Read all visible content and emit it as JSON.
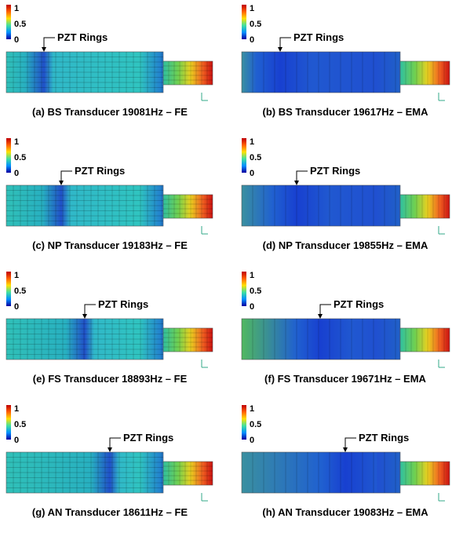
{
  "panels": [
    {
      "caption": "(a) BS Transducer 19081Hz – FE",
      "annotation": "PZT Rings",
      "colorbar_ticks": [
        "1",
        "0.5",
        "0"
      ]
    },
    {
      "caption": "(b) BS Transducer 19617Hz – EMA",
      "annotation": "PZT Rings",
      "colorbar_ticks": [
        "1",
        "0.5",
        "0"
      ]
    },
    {
      "caption": "(c) NP Transducer 19183Hz – FE",
      "annotation": "PZT Rings",
      "colorbar_ticks": [
        "1",
        "0.5",
        "0"
      ]
    },
    {
      "caption": "(d) NP Transducer 19855Hz – EMA",
      "annotation": "PZT Rings",
      "colorbar_ticks": [
        "1",
        "0.5",
        "0"
      ]
    },
    {
      "caption": "(e) FS Transducer 18893Hz – FE",
      "annotation": "PZT Rings",
      "colorbar_ticks": [
        "1",
        "0.5",
        "0"
      ]
    },
    {
      "caption": "(f) FS Transducer 19671Hz – EMA",
      "annotation": "PZT Rings",
      "colorbar_ticks": [
        "1",
        "0.5",
        "0"
      ]
    },
    {
      "caption": "(g) AN Transducer 18611Hz – FE",
      "annotation": "PZT Rings",
      "colorbar_ticks": [
        "1",
        "0.5",
        "0"
      ]
    },
    {
      "caption": "(h) AN Transducer 19083Hz – EMA",
      "annotation": "PZT Rings",
      "colorbar_ticks": [
        "1",
        "0.5",
        "0"
      ]
    }
  ]
}
